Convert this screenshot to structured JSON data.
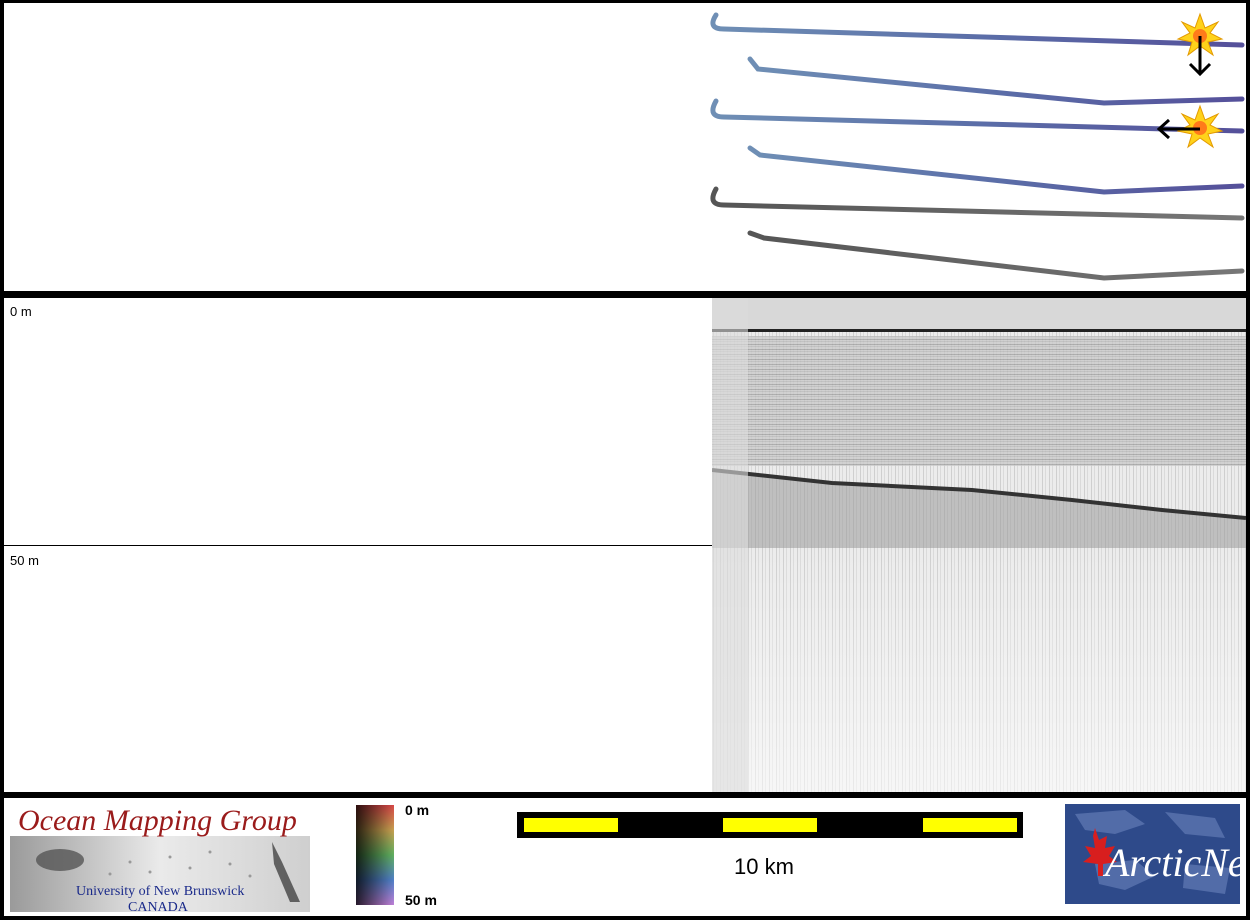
{
  "sonar": {
    "depth_top_label": "0 m",
    "depth_mid_label": "50 m"
  },
  "footer": {
    "omg_logo": {
      "title": "Ocean Mapping Group",
      "subtitle_line1": "University of New Brunswick",
      "subtitle_line2": "CANADA"
    },
    "colorbar": {
      "top_label": "0 m",
      "bottom_label": "50 m"
    },
    "scale_bar": {
      "label": "10 km",
      "segment_color": "#ffff00"
    },
    "arcticnet_logo": {
      "text": "ArcticNet"
    }
  },
  "map": {
    "marker_icons": [
      "sun-marker-icon",
      "arrow-down-icon",
      "arrow-left-icon"
    ]
  }
}
